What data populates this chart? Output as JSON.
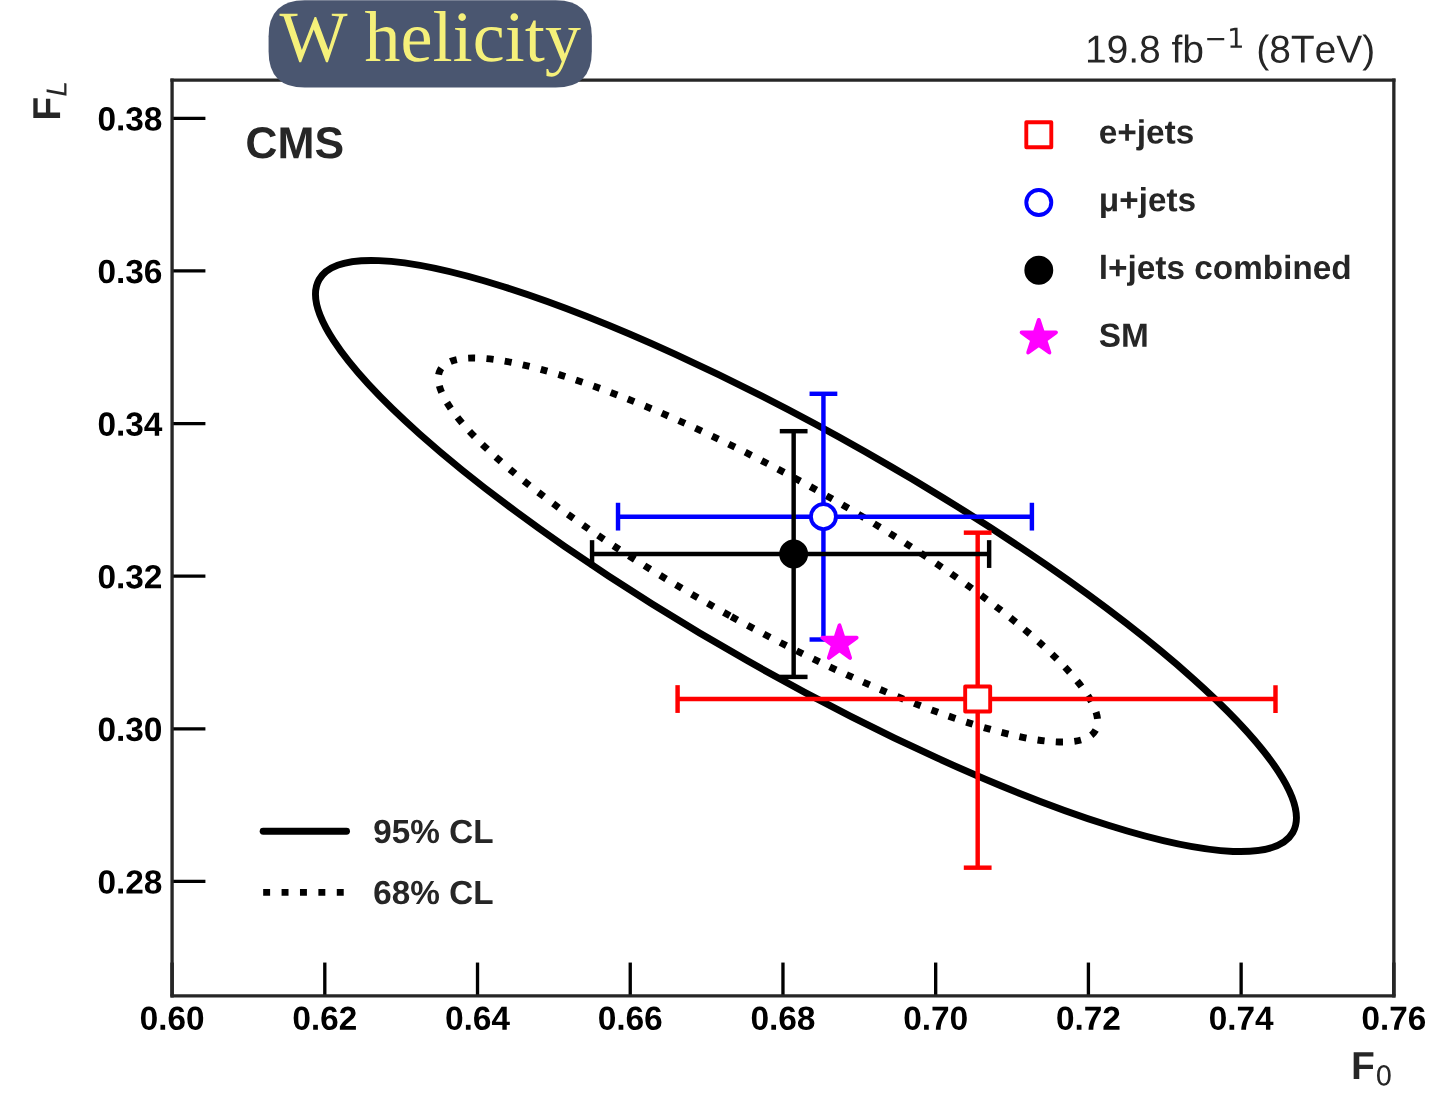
{
  "chart_data": {
    "type": "scatter",
    "title": "W helicity",
    "xlabel": "F$_{0}$",
    "ylabel": "F$_{L}$",
    "annotations": [
      "CMS",
      "19.8 fb$^{−1}$ (8TeV)",
      "95% CL",
      "68% CL"
    ],
    "xlim": [
      0.6,
      0.76
    ],
    "xticks": [
      {
        "value": 0.6,
        "label": "0.60"
      },
      {
        "value": 0.62,
        "label": "0.62"
      },
      {
        "value": 0.64,
        "label": "0.64"
      },
      {
        "value": 0.66,
        "label": "0.66"
      },
      {
        "value": 0.68,
        "label": "0.68"
      },
      {
        "value": 0.7,
        "label": "0.70"
      },
      {
        "value": 0.72,
        "label": "0.72"
      },
      {
        "value": 0.74,
        "label": "0.74"
      },
      {
        "value": 0.76,
        "label": "0.76"
      }
    ],
    "ylim": [
      0.265,
      0.385
    ],
    "yticks": [
      {
        "value": 0.28,
        "label": "0.28"
      },
      {
        "value": 0.3,
        "label": "0.30"
      },
      0.32,
      0.34,
      0.36,
      0.38
    ],
    "legend": "top right",
    "grid": false,
    "series": [
      {
        "name": "e+jets",
        "marker": "square",
        "color": "#ff0000",
        "x": [
          0.7055
        ],
        "values": [
          0.3039
        ],
        "errors": [
          [
            0.2818,
            0.3257
          ]
        ],
        "xerrors": [
          [
            0.6662,
            0.7445
          ]
        ]
      },
      {
        "name": "μ+jets",
        "marker": "circle",
        "color": "#0000ff",
        "x": [
          0.6853
        ],
        "values": [
          0.3278
        ],
        "errors": [
          [
            0.3117,
            0.3439
          ]
        ],
        "xerrors": [
          [
            0.6584,
            0.7126
          ]
        ]
      },
      {
        "name": "l+jets combined",
        "marker": "circle",
        "color": "#000000",
        "x": [
          0.6814
        ],
        "values": [
          0.3229
        ],
        "errors": [
          [
            0.3068,
            0.339
          ]
        ],
        "xerrors": [
          [
            0.655,
            0.707
          ]
        ]
      },
      {
        "name": "SM",
        "marker": "star",
        "color": "#ff00ff",
        "x": [
          0.6874
        ],
        "values": [
          0.3112
        ]
      }
    ]
  }
}
